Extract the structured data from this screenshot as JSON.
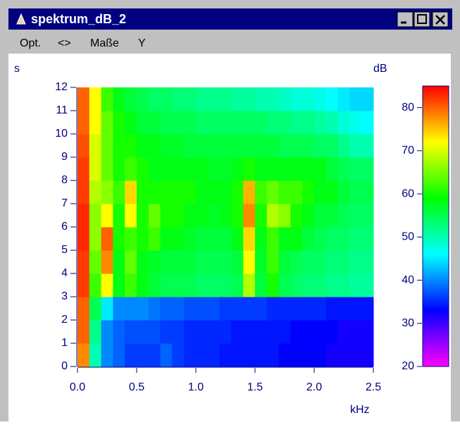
{
  "window": {
    "title": "spektrum_dB_2",
    "menu": [
      "Opt.",
      "<>",
      "Maße",
      "Y"
    ]
  },
  "chart_data": {
    "type": "heatmap",
    "x_label": "kHz",
    "y_label": "s",
    "colorbar_label": "dB",
    "xlim": [
      0,
      2.5
    ],
    "xticks": [
      {
        "value": 0,
        "label": "0.0"
      },
      0.5,
      {
        "value": 1,
        "label": "1.0"
      },
      1.5,
      {
        "value": 2,
        "label": "2.0"
      },
      2.5
    ],
    "ylim": [
      0,
      12
    ],
    "yticks": [
      0,
      1,
      2,
      3,
      4,
      5,
      6,
      7,
      8,
      9,
      10,
      11,
      12
    ],
    "clim": [
      20,
      85
    ],
    "cticks": [
      20,
      30,
      40,
      50,
      60,
      70,
      80
    ],
    "colormap": [
      "#ff00ff",
      "#8000ff",
      "#0000ff",
      "#0080ff",
      "#00ffff",
      "#00ff80",
      "#00ff00",
      "#80ff00",
      "#ffff00",
      "#ff8000",
      "#ff0000"
    ],
    "values": [
      [
        78,
        50,
        40,
        38,
        36,
        36,
        36,
        38,
        36,
        35,
        35,
        35,
        34,
        34,
        34,
        34,
        34,
        33,
        33,
        33,
        33,
        32,
        32,
        32,
        32
      ],
      [
        80,
        52,
        40,
        38,
        37,
        37,
        37,
        36,
        36,
        35,
        35,
        35,
        35,
        34,
        34,
        34,
        34,
        34,
        33,
        33,
        33,
        33,
        32,
        32,
        32
      ],
      [
        80,
        55,
        45,
        40,
        40,
        40,
        39,
        38,
        38,
        37,
        37,
        37,
        36,
        36,
        36,
        36,
        35,
        35,
        35,
        35,
        35,
        34,
        34,
        34,
        34
      ],
      [
        82,
        62,
        72,
        58,
        62,
        58,
        56,
        55,
        55,
        55,
        54,
        54,
        54,
        55,
        68,
        56,
        60,
        55,
        54,
        53,
        53,
        52,
        52,
        51,
        51
      ],
      [
        82,
        64,
        78,
        58,
        64,
        58,
        57,
        56,
        56,
        56,
        55,
        55,
        55,
        56,
        72,
        57,
        62,
        56,
        55,
        54,
        54,
        53,
        53,
        52,
        52
      ],
      [
        83,
        66,
        80,
        60,
        62,
        60,
        62,
        58,
        58,
        57,
        56,
        56,
        56,
        58,
        74,
        58,
        62,
        58,
        58,
        56,
        55,
        54,
        54,
        53,
        53
      ],
      [
        83,
        66,
        72,
        60,
        72,
        60,
        64,
        60,
        60,
        58,
        58,
        57,
        58,
        60,
        78,
        60,
        68,
        66,
        60,
        58,
        56,
        56,
        55,
        54,
        54
      ],
      [
        82,
        68,
        66,
        62,
        74,
        60,
        60,
        60,
        60,
        60,
        58,
        58,
        58,
        60,
        76,
        62,
        64,
        62,
        62,
        60,
        58,
        58,
        56,
        55,
        55
      ],
      [
        82,
        70,
        64,
        60,
        62,
        60,
        58,
        58,
        58,
        58,
        58,
        57,
        57,
        58,
        60,
        58,
        58,
        58,
        58,
        58,
        58,
        56,
        55,
        54,
        54
      ],
      [
        81,
        70,
        64,
        60,
        60,
        58,
        58,
        57,
        57,
        56,
        56,
        56,
        56,
        56,
        56,
        56,
        56,
        55,
        55,
        55,
        54,
        54,
        52,
        50,
        50
      ],
      [
        80,
        72,
        64,
        60,
        58,
        56,
        56,
        55,
        55,
        55,
        54,
        54,
        54,
        54,
        54,
        54,
        53,
        53,
        52,
        52,
        51,
        50,
        48,
        47,
        46
      ],
      [
        80,
        72,
        62,
        58,
        56,
        55,
        54,
        54,
        53,
        53,
        52,
        52,
        52,
        51,
        51,
        50,
        50,
        49,
        48,
        48,
        47,
        46,
        45,
        44,
        44
      ]
    ]
  }
}
